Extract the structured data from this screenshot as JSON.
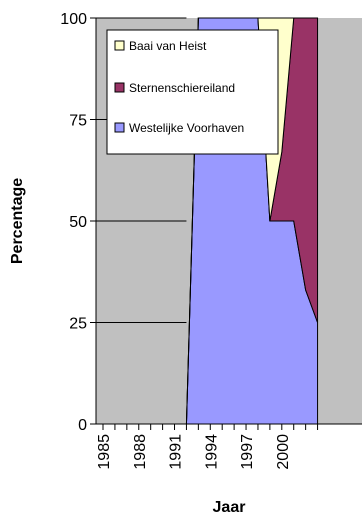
{
  "chart_data": {
    "type": "area",
    "stacked": true,
    "xlabel": "Jaar",
    "ylabel": "Percentage",
    "xlim": [
      1985,
      2003
    ],
    "ylim": [
      0,
      100
    ],
    "xticks": [
      1985,
      1986,
      1987,
      1988,
      1989,
      1990,
      1991,
      1992,
      1993,
      1994,
      1995,
      1996,
      1997,
      1998,
      1999,
      2000,
      2001,
      2002,
      2003
    ],
    "xtick_labels": [
      "1985",
      "1988",
      "1991",
      "1994",
      "1997",
      "2000"
    ],
    "yticks": [
      0,
      25,
      50,
      75,
      100
    ],
    "grid": "horizontal",
    "plot_background": "#c0c0c0",
    "legend_position": "top-left-inside",
    "x": [
      1992,
      1993,
      1994,
      1995,
      1996,
      1997,
      1998,
      1999,
      2000,
      2001,
      2002,
      2003
    ],
    "series": [
      {
        "name": "Westelijke Voorhaven",
        "color": "#9999ff",
        "values": [
          0,
          100,
          100,
          100,
          100,
          100,
          100,
          50,
          50,
          50,
          33,
          25
        ]
      },
      {
        "name": "Sternenschiereiland",
        "color": "#993366",
        "values": [
          0,
          0,
          0,
          0,
          0,
          0,
          0,
          0,
          17,
          50,
          67,
          75
        ]
      },
      {
        "name": "Baai van Heist",
        "color": "#ffffcc",
        "values": [
          0,
          0,
          0,
          0,
          0,
          0,
          0,
          50,
          33,
          0,
          0,
          0
        ]
      }
    ],
    "legend_order": [
      "Baai van Heist",
      "Sternenschiereiland",
      "Westelijke Voorhaven"
    ]
  }
}
